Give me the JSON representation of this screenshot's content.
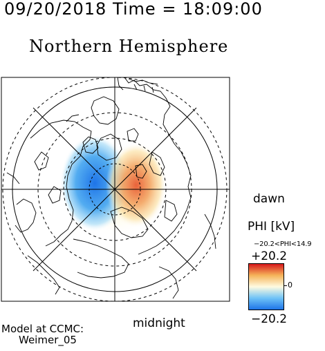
{
  "header": {
    "datetime": "09/20/2018 Time = 18:09:00",
    "title": "Northern Hemisphere"
  },
  "map": {
    "dawn_label": "dawn",
    "midnight_label": "midnight",
    "noon_label": "",
    "dusk_label": "",
    "positive_cell_color": "#e63020",
    "negative_cell_color": "#1e88e5"
  },
  "legend": {
    "title": "PHI [kV]",
    "range_text": "−20.2<PHI<14.9",
    "max_label": "+20.2",
    "min_label": "−20.2",
    "zero_label": "0",
    "colors": [
      "#d7191c",
      "#f5b35a",
      "#fffbe0",
      "#6fc3f7",
      "#1e74e8"
    ]
  },
  "credit": {
    "line1": "Model at CCMC:",
    "line2": "Weimer_05"
  }
}
